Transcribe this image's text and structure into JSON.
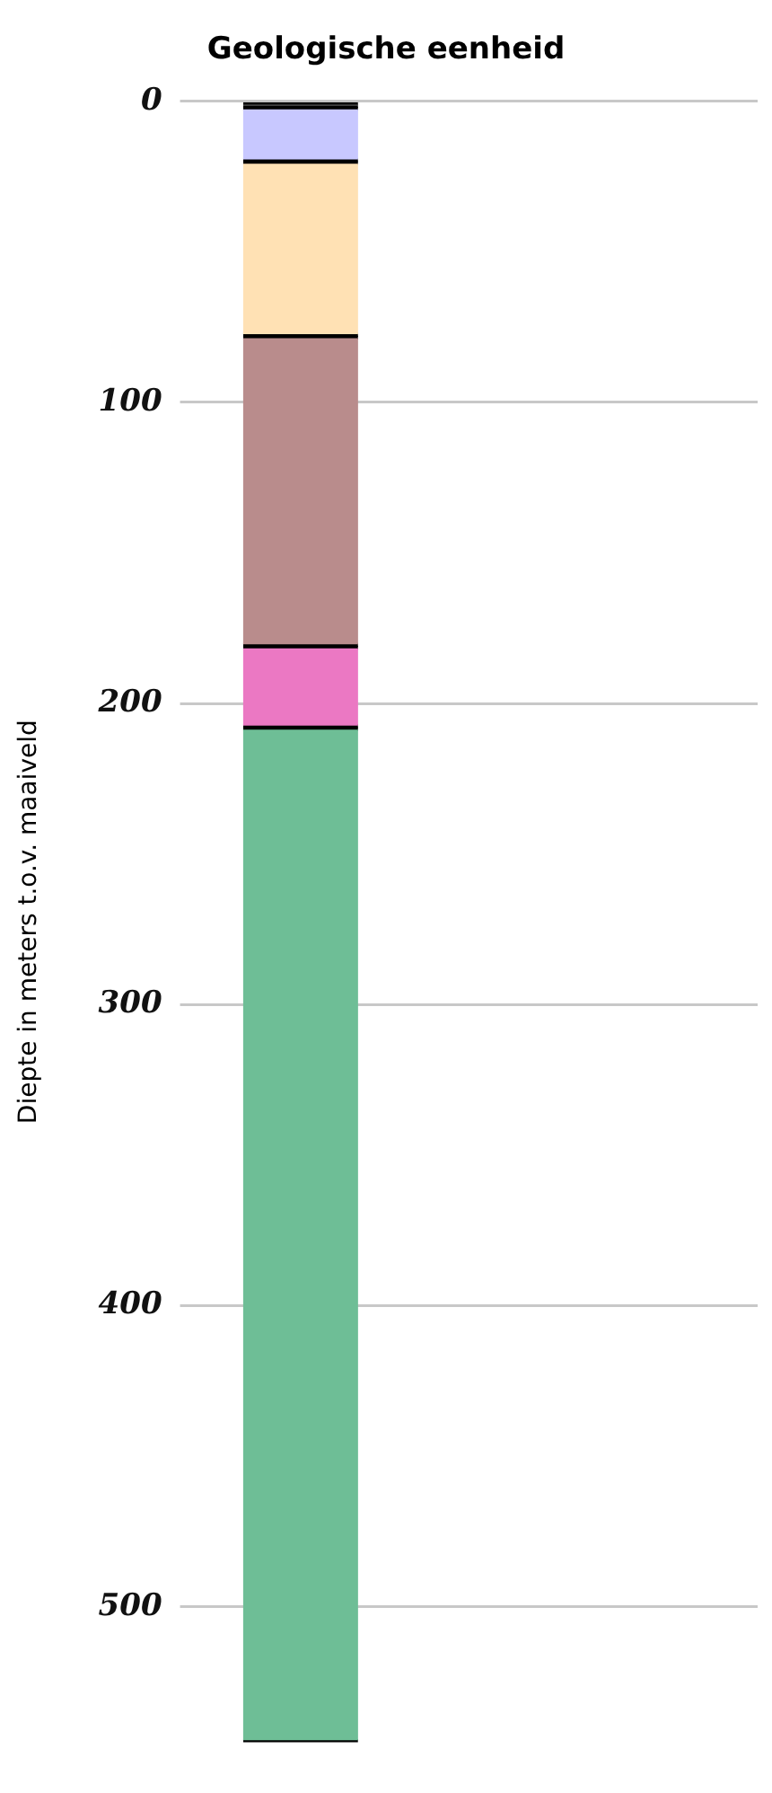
{
  "chart_data": {
    "type": "bar",
    "title": "Geologische eenheid",
    "ylabel": "Diepte in meters t.o.v. maaiveld",
    "categories": [
      null
    ],
    "stacked": true,
    "series": [
      {
        "color": "#000000",
        "values": [
          2
        ]
      },
      {
        "color": "#c8c8ff",
        "values": [
          18
        ]
      },
      {
        "color": "#ffe1b4",
        "values": [
          58
        ]
      },
      {
        "color": "#b98c8c",
        "values": [
          103
        ]
      },
      {
        "color": "#eb78c3",
        "values": [
          27
        ]
      },
      {
        "color": "#6ebe96",
        "values": [
          337
        ]
      }
    ],
    "ylim": [
      545,
      0
    ],
    "yticks": [
      0,
      100,
      200,
      300,
      400,
      500
    ],
    "grid": "y",
    "legend": false
  }
}
